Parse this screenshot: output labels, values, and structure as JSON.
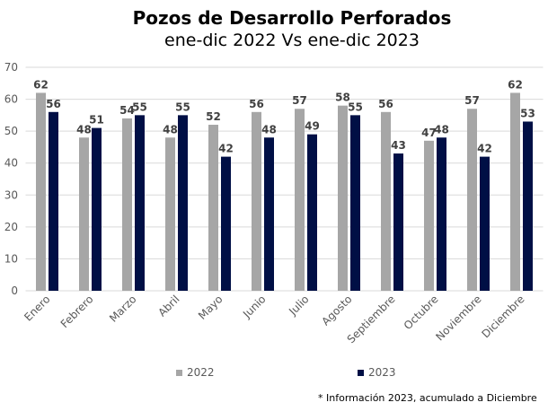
{
  "chart_data": {
    "type": "bar",
    "title": "Pozos de Desarrollo Perforados",
    "subtitle": "ene-dic 2022 Vs ene-dic 2023",
    "categories": [
      "Enero",
      "Febrero",
      "Marzo",
      "Abril",
      "Mayo",
      "Junio",
      "Julio",
      "Agosto",
      "Septiembre",
      "Octubre",
      "Noviembre",
      "Diciembre"
    ],
    "series": [
      {
        "name": "2022",
        "color": "#a6a6a6",
        "values": [
          62,
          48,
          54,
          48,
          52,
          56,
          57,
          58,
          56,
          47,
          57,
          62
        ]
      },
      {
        "name": "2023",
        "color": "#000f45",
        "values": [
          56,
          51,
          55,
          55,
          42,
          48,
          49,
          55,
          43,
          48,
          42,
          53
        ]
      }
    ],
    "ylim": [
      0,
      70
    ],
    "yticks": [
      0,
      10,
      20,
      30,
      40,
      50,
      60,
      70
    ],
    "grid": true,
    "legend": "bottom",
    "xlabel": "",
    "ylabel": "",
    "note": "* Información 2023, acumulado a Diciembre"
  }
}
